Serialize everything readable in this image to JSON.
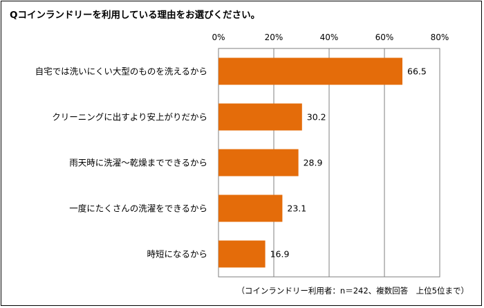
{
  "chart_data": {
    "type": "bar",
    "orientation": "horizontal",
    "title": "Qコインランドリーを利用している理由をお選びください。",
    "categories": [
      "自宅では洗いにくい大型のものを洗えるから",
      "クリーニングに出すより安上がりだから",
      "雨天時に洗濯～乾燥までできるから",
      "一度にたくさんの洗濯をできるから",
      "時短になるから"
    ],
    "values": [
      66.5,
      30.2,
      28.9,
      23.1,
      16.9
    ],
    "xlim": [
      0,
      80
    ],
    "ticks": [
      "0%",
      "20%",
      "40%",
      "60%",
      "80%"
    ],
    "grid": true,
    "bar_color": "#E46C0A",
    "note": "（コインランドリー利用者：n＝242、複数回答　上位5位まで）"
  }
}
